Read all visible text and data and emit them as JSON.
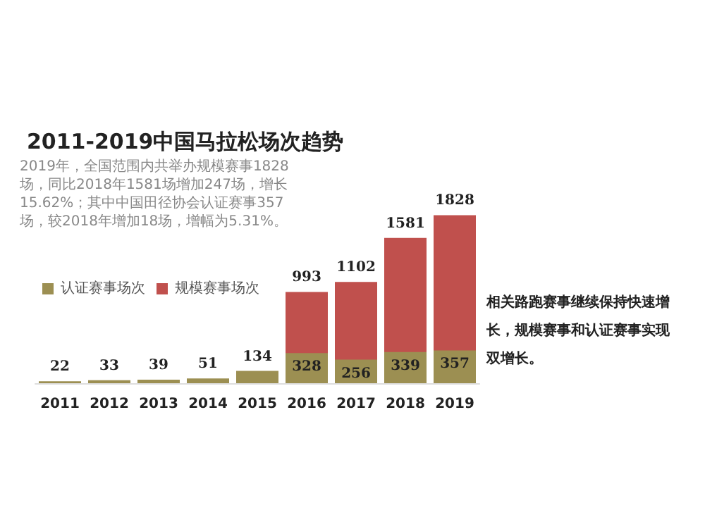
{
  "chart_data": {
    "type": "bar",
    "title": "2011-2019中国马拉松场次趋势",
    "categories": [
      "2011",
      "2012",
      "2013",
      "2014",
      "2015",
      "2016",
      "2017",
      "2018",
      "2019"
    ],
    "series": [
      {
        "name": "认证赛事场次",
        "color": "#9c8f52",
        "values": [
          22,
          33,
          39,
          51,
          134,
          328,
          256,
          339,
          357
        ]
      },
      {
        "name": "规模赛事场次",
        "color": "#c0504d",
        "values": [
          null,
          null,
          null,
          null,
          null,
          993,
          1102,
          1581,
          1828
        ]
      }
    ],
    "annotations": [
      "2019年，全国范围内共举办规模赛事1828场，同比2018年1581场增加247场，增长15.62%；其中中国田径协会认证赛事357场，较2018年增加18场，增幅为5.31%。",
      "相关路跑赛事继续保持快速增长，规模赛事和认证赛事实现双增长。"
    ],
    "data_labels": true,
    "legend": "top left"
  }
}
